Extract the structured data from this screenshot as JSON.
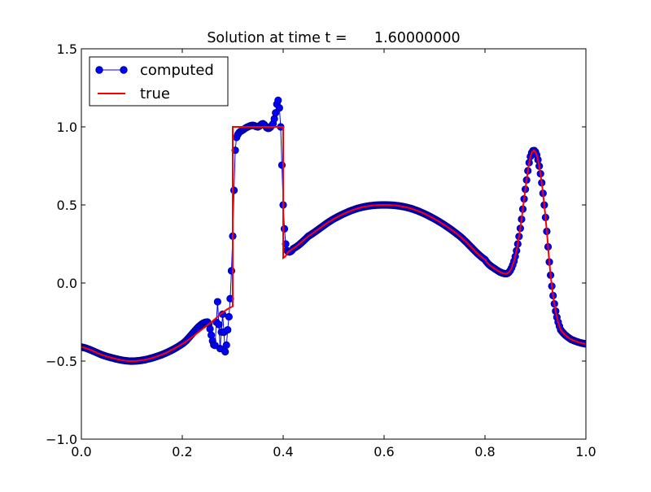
{
  "chart_data": {
    "type": "line",
    "title": "Solution at time t =      1.60000000",
    "xlabel": "",
    "ylabel": "",
    "xlim": [
      0.0,
      1.0
    ],
    "ylim": [
      -1.0,
      1.5
    ],
    "x_ticks": [
      "0.0",
      "0.2",
      "0.4",
      "0.6",
      "0.8",
      "1.0"
    ],
    "y_ticks": [
      "1.5",
      "1.0",
      "0.5",
      "0.0",
      "−0.5",
      "−1.0"
    ],
    "legend_position": "top-left",
    "grid": false,
    "series": [
      {
        "name": "computed",
        "style": "line-with-circle-markers",
        "color": "#0000ff",
        "marker_edge_color": "#000080",
        "x": [
          0.0,
          0.05,
          0.1,
          0.15,
          0.2,
          0.25,
          0.265,
          0.27,
          0.275,
          0.28,
          0.285,
          0.29,
          0.295,
          0.3,
          0.305,
          0.31,
          0.32,
          0.33,
          0.34,
          0.35,
          0.36,
          0.37,
          0.38,
          0.385,
          0.39,
          0.395,
          0.4,
          0.405,
          0.41,
          0.42,
          0.45,
          0.5,
          0.55,
          0.6,
          0.65,
          0.7,
          0.75,
          0.8,
          0.82,
          0.84,
          0.85,
          0.86,
          0.87,
          0.88,
          0.89,
          0.9,
          0.91,
          0.92,
          0.93,
          0.94,
          0.95,
          0.97,
          1.0
        ],
        "y": [
          -0.41,
          -0.47,
          -0.5,
          -0.47,
          -0.39,
          -0.25,
          -0.4,
          -0.12,
          -0.42,
          -0.2,
          -0.44,
          -0.3,
          -0.1,
          0.3,
          0.85,
          0.95,
          0.98,
          1.0,
          1.01,
          1.0,
          1.02,
          0.99,
          1.02,
          1.09,
          1.17,
          1.0,
          0.5,
          0.25,
          0.2,
          0.22,
          0.3,
          0.41,
          0.48,
          0.5,
          0.48,
          0.41,
          0.3,
          0.15,
          0.09,
          0.06,
          0.08,
          0.17,
          0.35,
          0.6,
          0.81,
          0.84,
          0.7,
          0.42,
          0.05,
          -0.18,
          -0.3,
          -0.36,
          -0.39
        ]
      },
      {
        "name": "true",
        "style": "line",
        "color": "#ff0000",
        "x": [
          0.0,
          0.05,
          0.1,
          0.15,
          0.2,
          0.25,
          0.3,
          0.3,
          0.4,
          0.4,
          0.41,
          0.45,
          0.5,
          0.55,
          0.6,
          0.65,
          0.7,
          0.75,
          0.8,
          0.82,
          0.84,
          0.85,
          0.86,
          0.87,
          0.88,
          0.89,
          0.9,
          0.91,
          0.92,
          0.93,
          0.94,
          0.95,
          0.97,
          1.0
        ],
        "y": [
          -0.41,
          -0.47,
          -0.5,
          -0.47,
          -0.39,
          -0.27,
          -0.15,
          1.0,
          1.0,
          0.16,
          0.2,
          0.3,
          0.41,
          0.48,
          0.5,
          0.48,
          0.41,
          0.3,
          0.15,
          0.09,
          0.06,
          0.08,
          0.17,
          0.35,
          0.6,
          0.81,
          0.84,
          0.7,
          0.42,
          0.05,
          -0.18,
          -0.3,
          -0.36,
          -0.39
        ]
      }
    ]
  }
}
